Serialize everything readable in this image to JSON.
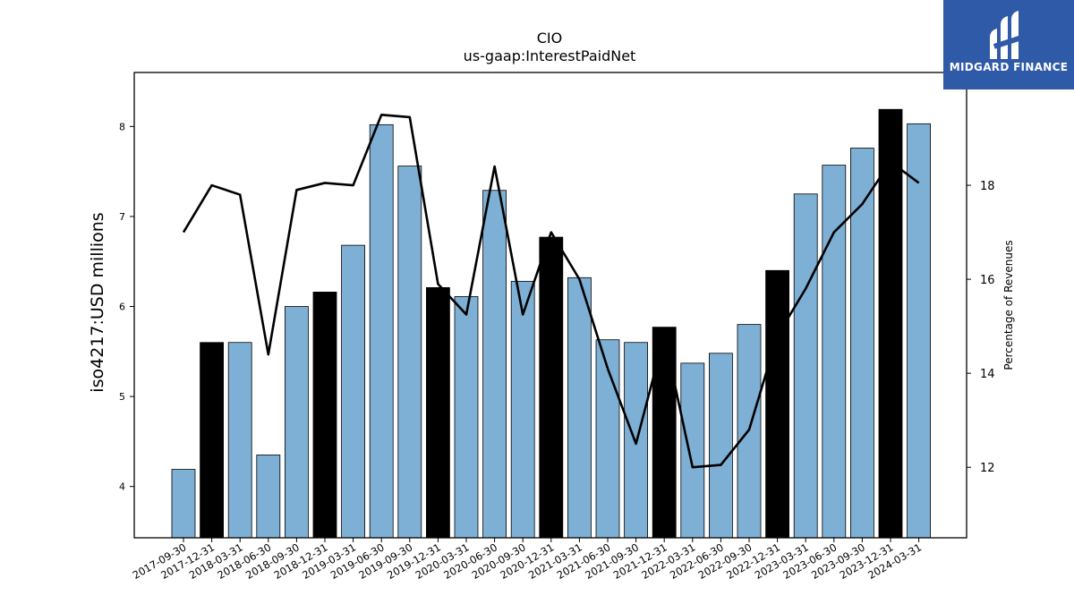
{
  "chart_data": {
    "type": "bar",
    "title": "CIO",
    "subtitle": "us-gaap:InterestPaidNet",
    "ylabel": "iso4217:USD  millions",
    "y2label": "Percentage of Revenues",
    "categories": [
      "2017-09-30",
      "2017-12-31",
      "2018-03-31",
      "2018-06-30",
      "2018-09-30",
      "2018-12-31",
      "2019-03-31",
      "2019-06-30",
      "2019-09-30",
      "2019-12-31",
      "2020-03-31",
      "2020-06-30",
      "2020-09-30",
      "2020-12-31",
      "2021-03-31",
      "2021-06-30",
      "2021-09-30",
      "2021-12-31",
      "2022-03-31",
      "2022-06-30",
      "2022-09-30",
      "2022-12-31",
      "2023-03-31",
      "2023-06-30",
      "2023-09-30",
      "2023-12-31",
      "2024-03-31"
    ],
    "series": [
      {
        "values": [
          4.19,
          5.6,
          5.6,
          4.35,
          6.0,
          6.16,
          6.68,
          8.02,
          7.56,
          6.21,
          6.11,
          7.29,
          6.28,
          6.77,
          6.32,
          5.63,
          5.6,
          5.77,
          5.37,
          5.48,
          5.8,
          6.4,
          7.25,
          7.57,
          7.76,
          8.19,
          8.03
        ],
        "year_end": [
          false,
          true,
          false,
          false,
          false,
          true,
          false,
          false,
          false,
          true,
          false,
          false,
          false,
          true,
          false,
          false,
          false,
          true,
          false,
          false,
          false,
          true,
          false,
          false,
          false,
          true,
          false
        ],
        "color": "#7eb0d5",
        "year_end_color": "#000000"
      },
      {
        "type": "line",
        "axis": "right",
        "values": [
          17.0,
          18.0,
          17.8,
          14.4,
          17.9,
          18.05,
          18.0,
          19.5,
          19.45,
          15.9,
          15.25,
          18.4,
          15.25,
          17.0,
          16.0,
          14.1,
          12.5,
          14.8,
          12.0,
          12.05,
          12.8,
          14.8,
          15.8,
          17.0,
          17.6,
          18.5,
          18.05
        ],
        "color": "#000000"
      }
    ],
    "ylim": [
      3.43,
      8.6
    ],
    "y2lim": [
      10.5,
      20.4
    ],
    "yticks": [
      4,
      5,
      6,
      7,
      8
    ],
    "y2ticks": [
      12,
      14,
      16,
      18
    ]
  },
  "logo": {
    "text": "MIDGARD FINANCE",
    "background": "#2f5aa8"
  }
}
